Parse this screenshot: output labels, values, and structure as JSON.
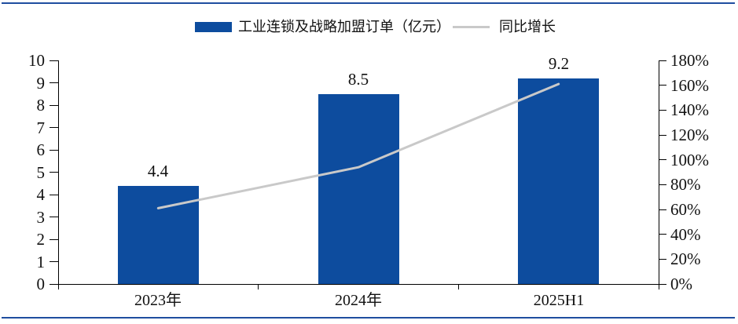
{
  "page": {
    "background": "#FFFFFF"
  },
  "colors": {
    "bar_fill": "#0D4C9E",
    "line_stroke": "#C9C9C9",
    "frame_rule": "#1F4E9F",
    "axis_line": "#000000",
    "text": "#111111"
  },
  "legend": {
    "bar_label": "工业连锁及战略加盟订单（亿元）",
    "line_label": "同比增长"
  },
  "chart_data": {
    "type": "bar",
    "subtype": "bar+line dual-axis combo",
    "categories": [
      "2023年",
      "2024年",
      "2025H1"
    ],
    "series": [
      {
        "name": "工业连锁及战略加盟订单（亿元）",
        "type": "bar",
        "axis": "left",
        "unit": "亿元",
        "values": [
          4.4,
          8.5,
          9.2
        ],
        "data_labels": [
          "4.4",
          "8.5",
          "9.2"
        ],
        "color": "#0D4C9E"
      },
      {
        "name": "同比增长",
        "type": "line",
        "axis": "right",
        "unit": "%",
        "values": [
          61,
          94,
          161
        ],
        "color": "#C9C9C9"
      }
    ],
    "left_axis": {
      "min": 0,
      "max": 10,
      "step": 1,
      "tick_labels": [
        "0",
        "1",
        "2",
        "3",
        "4",
        "5",
        "6",
        "7",
        "8",
        "9",
        "10"
      ]
    },
    "right_axis": {
      "min_pct": 0,
      "max_pct": 180,
      "step_pct": 20,
      "tick_labels": [
        "0%",
        "20%",
        "40%",
        "60%",
        "80%",
        "100%",
        "120%",
        "140%",
        "160%",
        "180%"
      ]
    },
    "grid": false,
    "legend_position": "top-center"
  }
}
